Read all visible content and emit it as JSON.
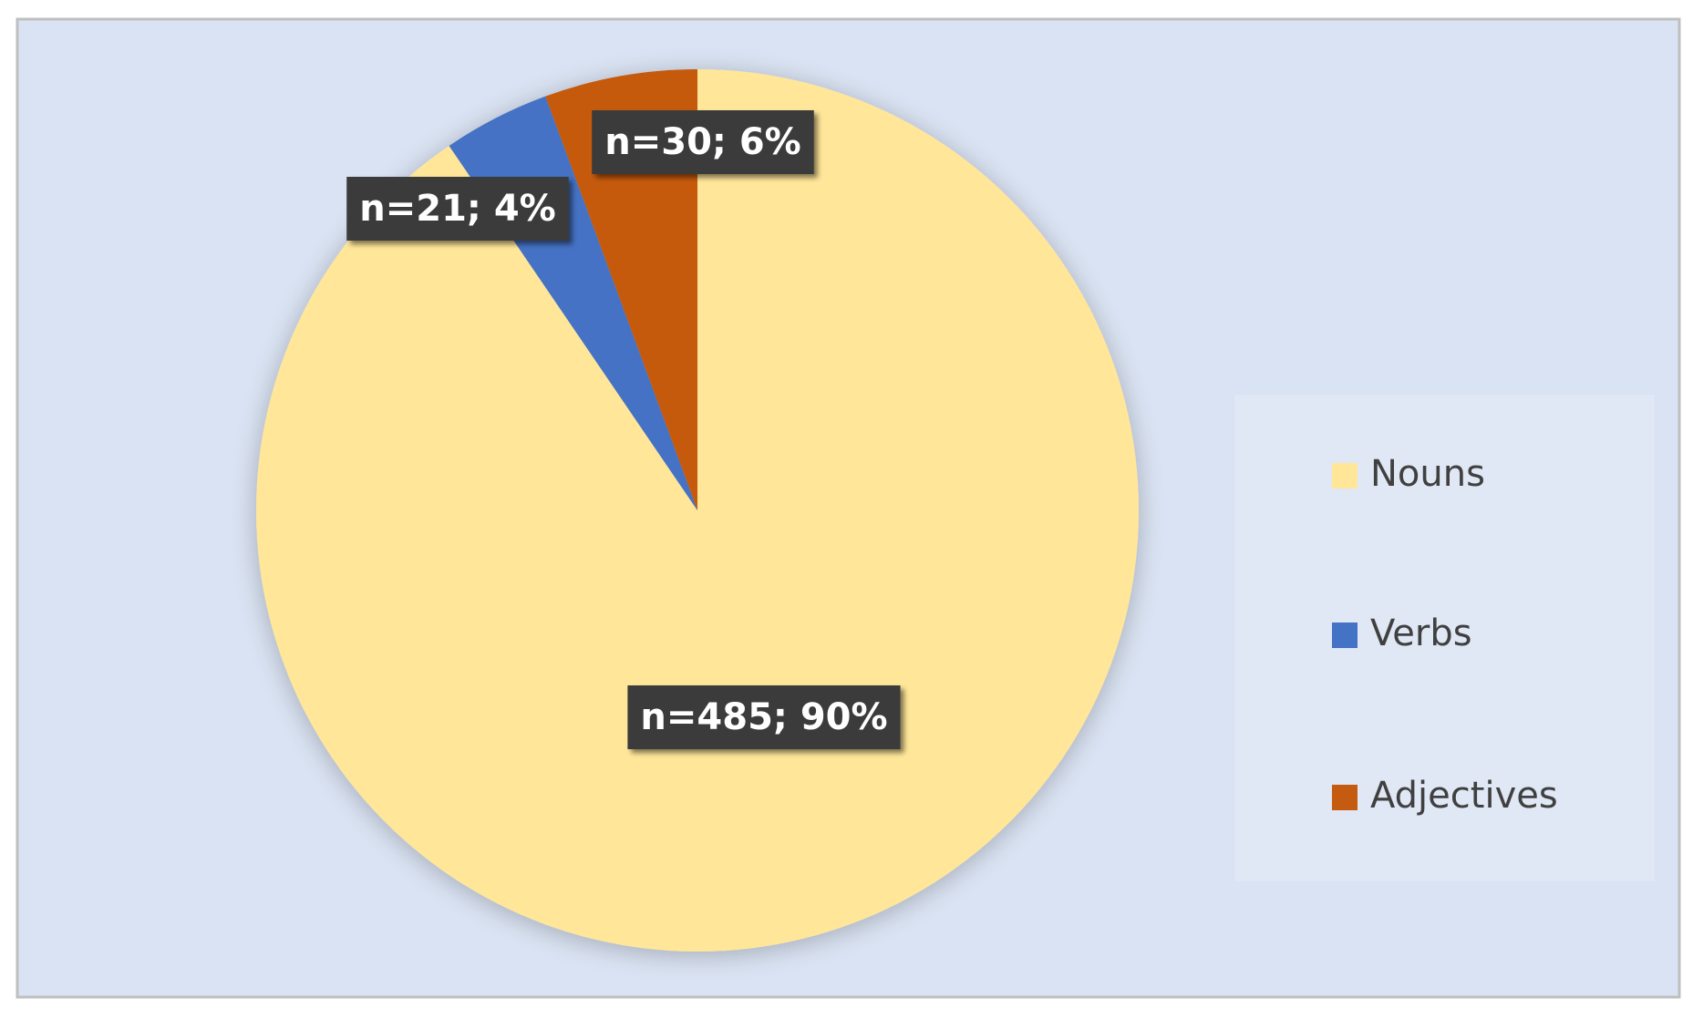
{
  "chart_data": {
    "type": "pie",
    "categories": [
      "Nouns",
      "Verbs",
      "Adjectives"
    ],
    "values": [
      485,
      21,
      30
    ],
    "value_labels": [
      "n=485; 90%",
      "n=21; 4%",
      "n=30; 6%"
    ],
    "colors": [
      "#FFE699",
      "#4472C4",
      "#C55A11"
    ],
    "legend": "right"
  }
}
